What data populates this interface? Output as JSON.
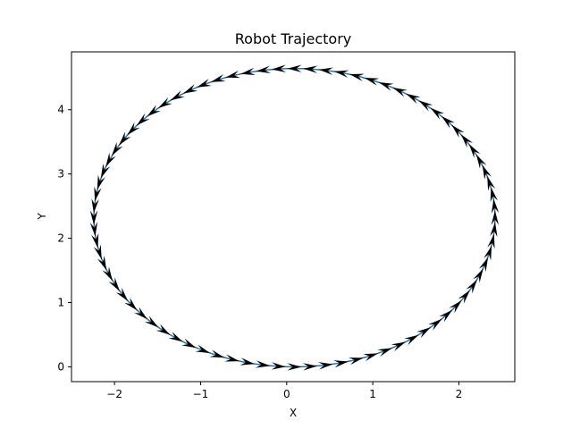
{
  "chart_data": {
    "type": "line",
    "title": "Robot Trajectory",
    "xlabel": "X",
    "ylabel": "Y",
    "xlim": [
      -2.5,
      2.65
    ],
    "ylim": [
      -0.23,
      4.9
    ],
    "xticks": [
      -2,
      -1,
      0,
      1,
      2
    ],
    "yticks": [
      0,
      1,
      2,
      3,
      4
    ],
    "xtick_labels": [
      "−2",
      "−1",
      "0",
      "1",
      "2"
    ],
    "ytick_labels": [
      "0",
      "1",
      "2",
      "3",
      "4"
    ],
    "grid": false,
    "legend": "none",
    "path": {
      "shape": "ellipse",
      "center": [
        0.09,
        2.32
      ],
      "radius_x": 2.33,
      "radius_y": 2.32,
      "direction": "counterclockwise",
      "start_point": [
        0.09,
        0.0
      ]
    },
    "arrow_count": 80,
    "colors": {
      "line": "#1f77b4",
      "arrows": "#000000",
      "axes": "#000000"
    }
  }
}
